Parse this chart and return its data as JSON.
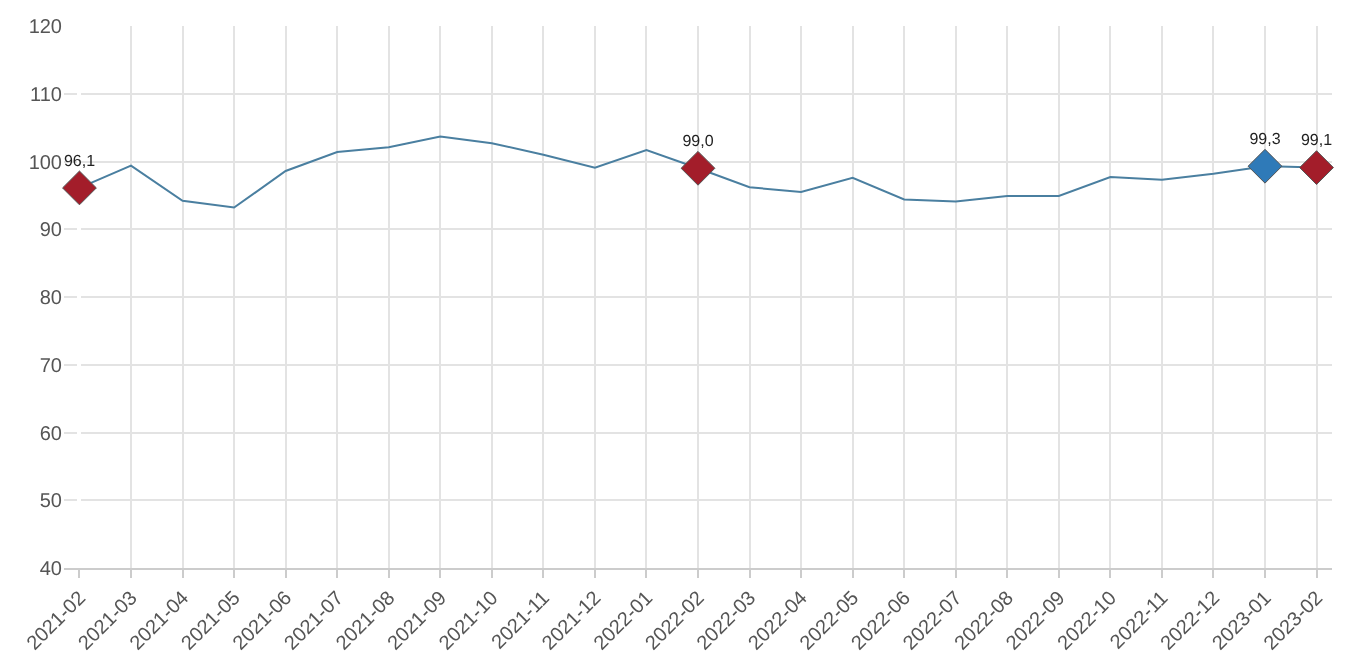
{
  "chart_data": {
    "type": "line",
    "categories": [
      "2021-02",
      "2021-03",
      "2021-04",
      "2021-05",
      "2021-06",
      "2021-07",
      "2021-08",
      "2021-09",
      "2021-10",
      "2021-11",
      "2021-12",
      "2022-01",
      "2022-02",
      "2022-03",
      "2022-04",
      "2022-05",
      "2022-06",
      "2022-07",
      "2022-08",
      "2022-09",
      "2022-10",
      "2022-11",
      "2022-12",
      "2023-01",
      "2023-02"
    ],
    "series": [
      {
        "color": "#4a7fa0",
        "marker": "none",
        "values": [
          96.1,
          99.4,
          94.2,
          93.2,
          98.6,
          101.4,
          102.1,
          103.7,
          102.7,
          101.0,
          99.1,
          101.7,
          99.0,
          96.2,
          95.5,
          97.6,
          94.4,
          94.1,
          94.9,
          94.9,
          97.7,
          97.3,
          98.2,
          99.3,
          99.1
        ]
      },
      {
        "type": "scatter",
        "marker": "diamond",
        "values": [
          96.1,
          null,
          null,
          null,
          null,
          null,
          null,
          null,
          null,
          null,
          null,
          null,
          99.0,
          null,
          null,
          null,
          null,
          null,
          null,
          null,
          null,
          null,
          null,
          99.3,
          99.1
        ],
        "colors": [
          "#a31d2a",
          null,
          null,
          null,
          null,
          null,
          null,
          null,
          null,
          null,
          null,
          null,
          "#a31d2a",
          null,
          null,
          null,
          null,
          null,
          null,
          null,
          null,
          null,
          null,
          "#2f7ab8",
          "#a31d2a"
        ],
        "value_labels": [
          "96,1",
          null,
          null,
          null,
          null,
          null,
          null,
          null,
          null,
          null,
          null,
          null,
          "99,0",
          null,
          null,
          null,
          null,
          null,
          null,
          null,
          null,
          null,
          null,
          "99,3",
          "99,1"
        ]
      }
    ],
    "ylim": [
      40,
      120
    ],
    "yticks": [
      40,
      50,
      60,
      70,
      80,
      90,
      100,
      110,
      120
    ],
    "grid": true,
    "legend": false
  }
}
